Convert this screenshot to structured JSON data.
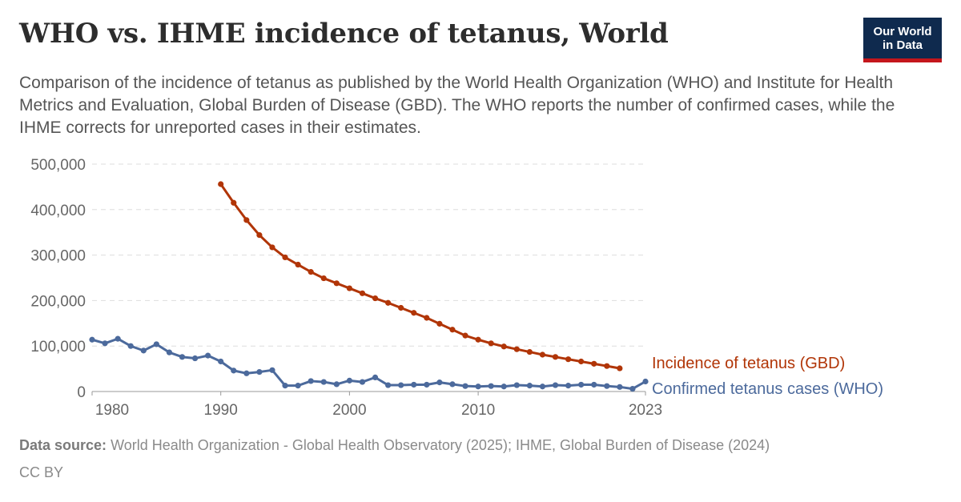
{
  "header": {
    "title": "WHO vs. IHME incidence of tetanus, World",
    "subtitle": "Comparison of the incidence of tetanus as published by the World Health Organization (WHO) and Institute for Health Metrics and Evaluation, Global Burden of Disease (GBD). The WHO reports the number of confirmed cases, while the IHME corrects for unreported cases in their estimates.",
    "logo_line1": "Our World",
    "logo_line2": "in Data"
  },
  "footer": {
    "source_label": "Data source:",
    "source_text": "World Health Organization - Global Health Observatory (2025); IHME, Global Burden of Disease (2024)",
    "license": "CC BY"
  },
  "colors": {
    "gbd": "#b13507",
    "who": "#4c6a9c",
    "grid": "#dddddd",
    "axis": "#999999"
  },
  "chart_data": {
    "type": "line",
    "ylim": [
      0,
      500000
    ],
    "xlim": [
      1980,
      2023
    ],
    "yticks": [
      {
        "value": 0,
        "label": "0"
      },
      {
        "value": 100000,
        "label": "100,000"
      },
      {
        "value": 200000,
        "label": "200,000"
      },
      {
        "value": 300000,
        "label": "300,000"
      },
      {
        "value": 400000,
        "label": "400,000"
      },
      {
        "value": 500000,
        "label": "500,000"
      }
    ],
    "xticks": [
      {
        "value": 1980,
        "label": "1980"
      },
      {
        "value": 1990,
        "label": "1990"
      },
      {
        "value": 2000,
        "label": "2000"
      },
      {
        "value": 2010,
        "label": "2010"
      },
      {
        "value": 2023,
        "label": "2023"
      }
    ],
    "grid": true,
    "series": [
      {
        "name": "Incidence of tetanus (GBD)",
        "color": "#b13507",
        "x": [
          1990,
          1991,
          1992,
          1993,
          1994,
          1995,
          1996,
          1997,
          1998,
          1999,
          2000,
          2001,
          2002,
          2003,
          2004,
          2005,
          2006,
          2007,
          2008,
          2009,
          2010,
          2011,
          2012,
          2013,
          2014,
          2015,
          2016,
          2017,
          2018,
          2019,
          2020,
          2021
        ],
        "y": [
          456000,
          415000,
          377000,
          344000,
          317000,
          295000,
          279000,
          263000,
          249000,
          238000,
          227000,
          216000,
          205000,
          195000,
          184000,
          173000,
          162000,
          149000,
          136000,
          123000,
          114000,
          106000,
          99000,
          93000,
          87000,
          81000,
          76000,
          71000,
          66000,
          61000,
          56000,
          51000
        ]
      },
      {
        "name": "Confirmed tetanus cases (WHO)",
        "color": "#4c6a9c",
        "x": [
          1980,
          1981,
          1982,
          1983,
          1984,
          1985,
          1986,
          1987,
          1988,
          1989,
          1990,
          1991,
          1992,
          1993,
          1994,
          1995,
          1996,
          1997,
          1998,
          1999,
          2000,
          2001,
          2002,
          2003,
          2004,
          2005,
          2006,
          2007,
          2008,
          2009,
          2010,
          2011,
          2012,
          2013,
          2014,
          2015,
          2016,
          2017,
          2018,
          2019,
          2020,
          2021,
          2022,
          2023
        ],
        "y": [
          114000,
          106000,
          116000,
          100000,
          90000,
          104000,
          86000,
          76000,
          73000,
          79000,
          66000,
          46000,
          40000,
          43000,
          47000,
          13000,
          13000,
          23000,
          21000,
          16000,
          24000,
          21000,
          31000,
          14000,
          14000,
          15000,
          15000,
          20000,
          16000,
          12000,
          11000,
          12000,
          11000,
          14000,
          13000,
          11000,
          14000,
          13000,
          15000,
          15000,
          12000,
          10000,
          6000,
          22000
        ]
      }
    ]
  }
}
